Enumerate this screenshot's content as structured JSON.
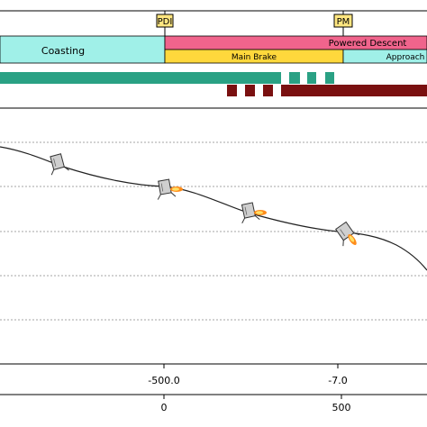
{
  "markers": {
    "pdi": "PDI",
    "pm": "PM"
  },
  "phases": {
    "coasting": "Coasting",
    "powered_descent": "Powered Descent",
    "main_brake": "Main Brake",
    "approach": "Approach"
  },
  "axis_top_ticks": [
    "-500.0",
    "-7.0"
  ],
  "axis_bottom_ticks": [
    "0",
    "500"
  ],
  "colors": {
    "coasting": "#a0f0e8",
    "powered_descent": "#f0648c",
    "main_brake": "#ffd83c",
    "approach": "#a0f0e8",
    "teal_bar": "#2aa184",
    "maroon_bar": "#7a1010",
    "marker_bg": "#ffe680"
  },
  "icons": {
    "lander": "lander-icon",
    "thrust": "flame-icon"
  }
}
